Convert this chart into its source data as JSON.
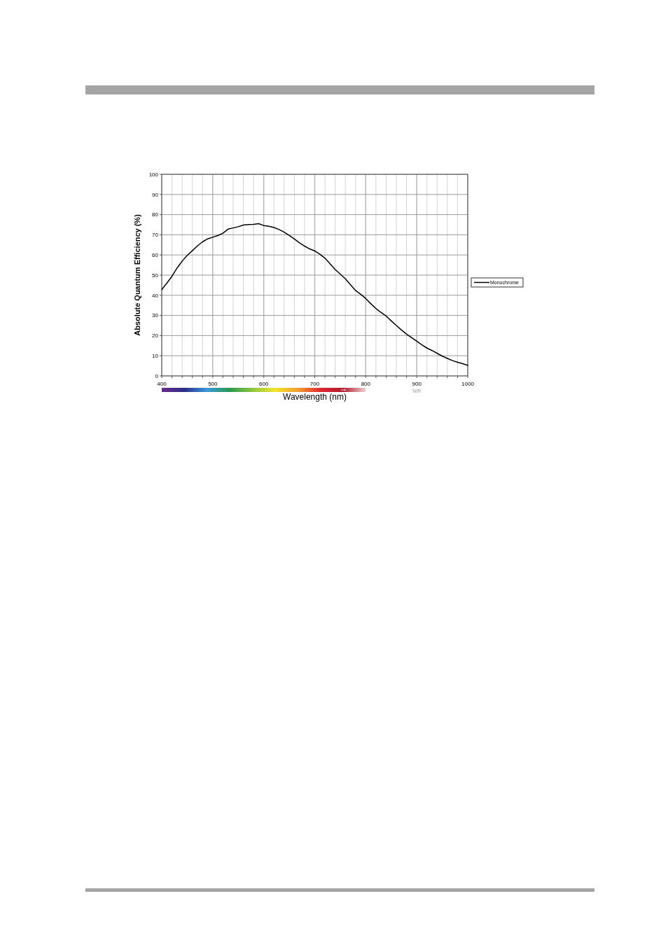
{
  "chart_data": {
    "type": "line",
    "xlabel": "Wavelength (nm)",
    "ylabel": "Absolute Quantum Efficiency (%)",
    "xlim": [
      400,
      1000
    ],
    "ylim": [
      0,
      100
    ],
    "xticks": [
      400,
      {
        "value": 420,
        "label": null
      },
      {
        "value": 440,
        "label": null
      },
      {
        "value": 460,
        "label": null
      },
      {
        "value": 480,
        "label": null
      },
      500,
      {
        "value": 520,
        "label": null
      },
      {
        "value": 540,
        "label": null
      },
      {
        "value": 560,
        "label": null
      },
      {
        "value": 580,
        "label": null
      },
      600,
      {
        "value": 620,
        "label": null
      },
      {
        "value": 640,
        "label": null
      },
      {
        "value": 660,
        "label": null
      },
      {
        "value": 680,
        "label": null
      },
      700,
      {
        "value": 720,
        "label": null
      },
      {
        "value": 740,
        "label": null
      },
      {
        "value": 760,
        "label": null
      },
      {
        "value": 780,
        "label": null
      },
      800,
      {
        "value": 820,
        "label": null
      },
      {
        "value": 840,
        "label": null
      },
      {
        "value": 860,
        "label": null
      },
      {
        "value": 880,
        "label": null
      },
      900,
      {
        "value": 920,
        "label": null
      },
      {
        "value": 940,
        "label": null
      },
      {
        "value": 960,
        "label": null
      },
      {
        "value": 980,
        "label": null
      },
      1000
    ],
    "yticks": [
      0,
      10,
      20,
      30,
      40,
      50,
      60,
      70,
      80,
      90,
      100
    ],
    "x": [
      400,
      410,
      420,
      430,
      440,
      450,
      460,
      470,
      480,
      490,
      500,
      510,
      520,
      530,
      540,
      550,
      560,
      570,
      580,
      590,
      600,
      610,
      620,
      630,
      640,
      650,
      660,
      670,
      680,
      690,
      700,
      710,
      720,
      730,
      740,
      750,
      760,
      770,
      780,
      790,
      800,
      810,
      820,
      830,
      840,
      850,
      860,
      870,
      880,
      890,
      900,
      910,
      920,
      930,
      940,
      950,
      960,
      970,
      980,
      990,
      1000
    ],
    "series": [
      {
        "name": "Monochrome",
        "color": "#000000",
        "values": [
          42.8,
          46,
          49.4,
          53.5,
          56.9,
          59.8,
          62.1,
          64.5,
          66.5,
          68,
          68.8,
          69.6,
          70.8,
          72.8,
          73.4,
          74,
          74.8,
          75.1,
          75.2,
          75.5,
          74.6,
          74.2,
          73.6,
          72.6,
          71.3,
          69.7,
          67.9,
          66,
          64.4,
          63,
          62,
          60.4,
          58.4,
          55.6,
          52.8,
          50.5,
          48.2,
          45.2,
          42.4,
          40.5,
          38.4,
          35.8,
          33.4,
          31.5,
          29.7,
          27.3,
          25,
          22.8,
          20.7,
          19,
          17.2,
          15.4,
          13.8,
          12.6,
          11.2,
          9.8,
          8.7,
          7.6,
          6.8,
          6.1,
          5.2
        ]
      }
    ],
    "annotations": [
      "NIR"
    ],
    "grid": true,
    "legend": "right",
    "marker": "none",
    "line_style": "solid"
  }
}
